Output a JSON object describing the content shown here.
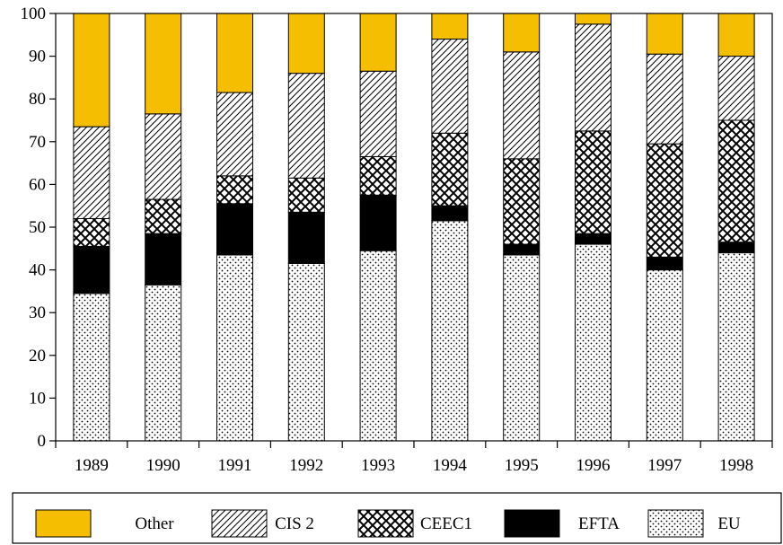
{
  "chart_data": {
    "type": "bar",
    "stacked": true,
    "percent": true,
    "categories": [
      "1989",
      "1990",
      "1991",
      "1992",
      "1993",
      "1994",
      "1995",
      "1996",
      "1997",
      "1998"
    ],
    "series": [
      {
        "name": "EU",
        "pattern": "dots",
        "values": [
          34.5,
          36.5,
          43.5,
          41.5,
          44.5,
          51.5,
          43.5,
          46,
          40,
          44
        ]
      },
      {
        "name": "EFTA",
        "pattern": "solid-black",
        "values": [
          11,
          12,
          12,
          12,
          13,
          3.5,
          2.5,
          2.5,
          3,
          2.5
        ]
      },
      {
        "name": "CEEC1",
        "pattern": "crosshatch",
        "values": [
          6.5,
          8,
          6.5,
          8,
          9,
          17,
          20,
          24,
          26.5,
          28.5
        ]
      },
      {
        "name": "CIS 2",
        "pattern": "diagonal",
        "values": [
          21.5,
          20,
          19.5,
          24.5,
          20,
          22,
          25,
          25,
          21,
          15
        ]
      },
      {
        "name": "Other",
        "pattern": "solid-gold",
        "values": [
          26.5,
          23.5,
          18.5,
          14,
          13.5,
          6,
          9,
          2.5,
          9.5,
          10
        ]
      }
    ],
    "ylim": [
      0,
      100
    ],
    "yticks": [
      "0",
      "10",
      "20",
      "30",
      "40",
      "50",
      "60",
      "70",
      "80",
      "90",
      "100"
    ],
    "grid": false,
    "legend_position": "bottom",
    "legend_order": [
      "Other",
      "CIS 2",
      "CEEC1",
      "EFTA",
      "EU"
    ],
    "colors": {
      "gold": "#F5BE00",
      "black": "#000000",
      "white": "#FFFFFF"
    }
  }
}
